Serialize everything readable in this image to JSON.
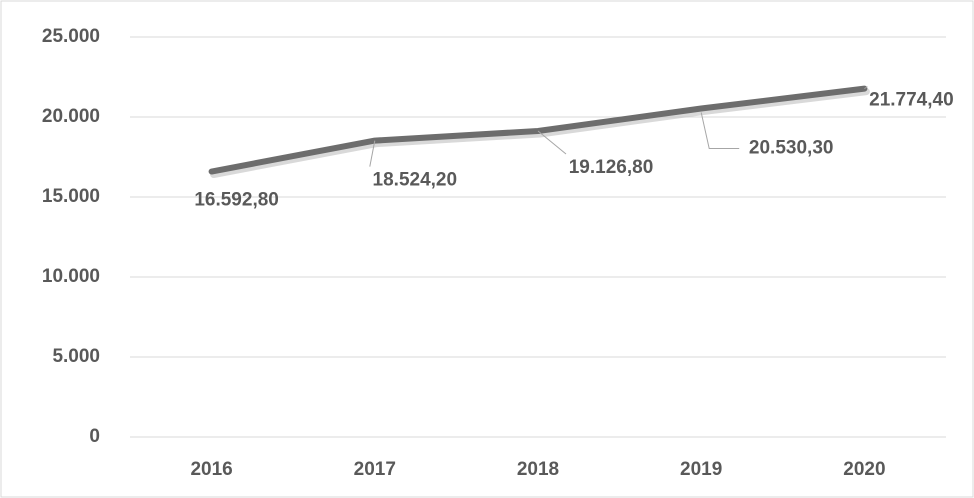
{
  "chart_data": {
    "type": "line",
    "categories": [
      "2016",
      "2017",
      "2018",
      "2019",
      "2020"
    ],
    "series": [
      {
        "color": "#6d6d6d",
        "values": [
          16592.8,
          18524.2,
          19126.8,
          20530.3,
          21774.4
        ],
        "value_labels": [
          "16.592,80",
          "18.524,20",
          "19.126,80",
          "20.530,30",
          "21.774,40"
        ]
      }
    ],
    "ylim": [
      0,
      25000
    ],
    "yticks": [
      0,
      {
        "value": 5000,
        "label": "5.000"
      },
      {
        "value": 10000,
        "label": "10.000"
      },
      {
        "value": 15000,
        "label": "15.000"
      },
      {
        "value": 20000,
        "label": "20.000"
      },
      {
        "value": 25000,
        "label": "25.000"
      }
    ],
    "grid": true
  }
}
